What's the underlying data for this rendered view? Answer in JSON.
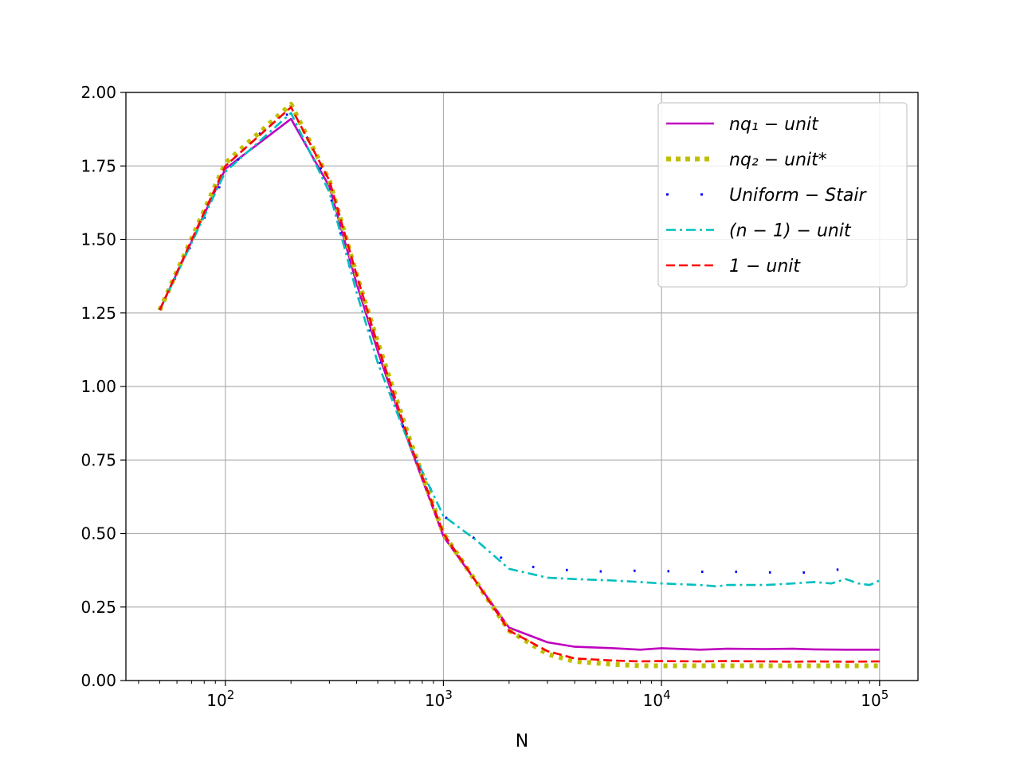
{
  "chart_data": {
    "type": "line",
    "xlabel": "N",
    "ylabel": "",
    "title": "",
    "xscale": "log",
    "xlim": [
      35,
      150000
    ],
    "ylim": [
      0,
      2.0
    ],
    "grid": true,
    "legend_position": "top-right",
    "x_ticks": [
      {
        "value": 100,
        "base": "10",
        "exp": "2"
      },
      {
        "value": 1000,
        "base": "10",
        "exp": "3"
      },
      {
        "value": 10000,
        "base": "10",
        "exp": "4"
      },
      {
        "value": 100000,
        "base": "10",
        "exp": "5"
      }
    ],
    "y_ticks": [
      "0.00",
      "0.25",
      "0.50",
      "0.75",
      "1.00",
      "1.25",
      "1.50",
      "1.75",
      "2.00"
    ],
    "series": [
      {
        "name": "nq₁ − unit",
        "color": "#bf00bf",
        "style": "solid",
        "x": [
          50,
          100,
          200,
          300,
          400,
          500,
          700,
          1000,
          1400,
          2000,
          3000,
          4000,
          6000,
          8000,
          10000,
          15000,
          20000,
          30000,
          40000,
          50000,
          70000,
          100000
        ],
        "y": [
          1.26,
          1.74,
          1.91,
          1.68,
          1.35,
          1.12,
          0.8,
          0.49,
          0.34,
          0.18,
          0.13,
          0.115,
          0.11,
          0.105,
          0.11,
          0.105,
          0.108,
          0.107,
          0.108,
          0.106,
          0.105,
          0.105
        ]
      },
      {
        "name": "nq₂ − unit*",
        "color": "#bfbf00",
        "style": "dotted",
        "x": [
          50,
          100,
          200,
          300,
          400,
          500,
          700,
          1000,
          1400,
          2000,
          3000,
          4000,
          6000,
          8000,
          10000,
          15000,
          20000,
          30000,
          40000,
          50000,
          70000,
          100000
        ],
        "y": [
          1.26,
          1.76,
          1.96,
          1.7,
          1.38,
          1.15,
          0.82,
          0.5,
          0.34,
          0.17,
          0.09,
          0.065,
          0.055,
          0.05,
          0.05,
          0.05,
          0.05,
          0.05,
          0.05,
          0.05,
          0.05,
          0.05
        ]
      },
      {
        "name": "Uniform − Stair",
        "color": "#0000ff",
        "style": "sparse-dotted",
        "x": [
          50,
          100,
          160,
          200,
          250,
          300,
          400,
          500,
          700,
          1000,
          1900,
          2800,
          3900,
          5800,
          8600,
          12400,
          18300,
          26500,
          38500,
          52000,
          70000,
          88000
        ],
        "y": [
          1.26,
          1.72,
          1.9,
          1.93,
          1.82,
          1.66,
          1.32,
          1.1,
          0.8,
          0.56,
          0.41,
          0.38,
          0.375,
          0.37,
          0.375,
          0.37,
          0.37,
          0.37,
          0.365,
          0.37,
          0.38,
          0.375
        ]
      },
      {
        "name": "(n − 1) − unit",
        "color": "#00bfbf",
        "style": "dashdot",
        "x": [
          50,
          100,
          200,
          300,
          400,
          500,
          700,
          1000,
          1400,
          2000,
          3000,
          4000,
          6000,
          8000,
          10000,
          15000,
          18000,
          20000,
          30000,
          40000,
          50000,
          60000,
          70000,
          80000,
          90000,
          100000
        ],
        "y": [
          1.26,
          1.73,
          1.93,
          1.66,
          1.32,
          1.08,
          0.8,
          0.56,
          0.48,
          0.38,
          0.35,
          0.345,
          0.34,
          0.335,
          0.33,
          0.325,
          0.32,
          0.325,
          0.325,
          0.33,
          0.335,
          0.33,
          0.345,
          0.33,
          0.325,
          0.34
        ]
      },
      {
        "name": "1 − unit",
        "color": "#ff0000",
        "style": "dashed",
        "x": [
          50,
          100,
          200,
          300,
          400,
          500,
          700,
          1000,
          1400,
          2000,
          3000,
          4000,
          6000,
          8000,
          10000,
          15000,
          20000,
          30000,
          40000,
          50000,
          70000,
          100000
        ],
        "y": [
          1.26,
          1.75,
          1.95,
          1.7,
          1.38,
          1.14,
          0.81,
          0.5,
          0.34,
          0.17,
          0.1,
          0.075,
          0.068,
          0.065,
          0.066,
          0.065,
          0.066,
          0.065,
          0.064,
          0.065,
          0.064,
          0.065
        ]
      }
    ]
  }
}
